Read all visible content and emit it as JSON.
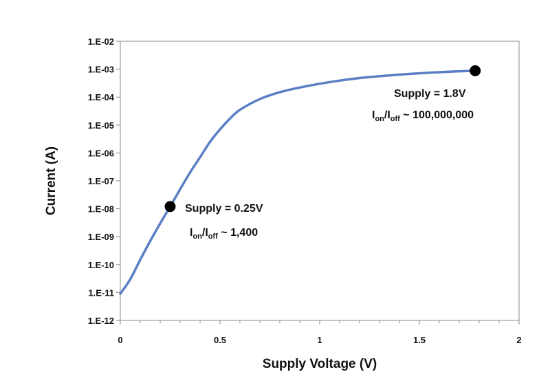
{
  "chart_data": {
    "type": "line",
    "title": "",
    "xlabel": "Supply Voltage (V)",
    "ylabel": "Current (A)",
    "x_scale": "linear",
    "y_scale": "log",
    "xlim": [
      0,
      2
    ],
    "ylim": [
      1e-12,
      0.01
    ],
    "grid": false,
    "legend": "none",
    "line_color": "#5B7FC4",
    "marker_color": "#000000",
    "x_ticks": [
      {
        "value": 0,
        "label": "0"
      },
      {
        "value": 0.5,
        "label": "0.5"
      },
      {
        "value": 1,
        "label": "1"
      },
      {
        "value": 1.5,
        "label": "1.5"
      },
      {
        "value": 2,
        "label": "2"
      }
    ],
    "y_ticks": [
      {
        "value": 1e-12,
        "label": "1.E-12"
      },
      {
        "value": 1e-11,
        "label": "1.E-11"
      },
      {
        "value": 1e-10,
        "label": "1.E-10"
      },
      {
        "value": 1e-09,
        "label": "1.E-09"
      },
      {
        "value": 1e-08,
        "label": "1.E-08"
      },
      {
        "value": 1e-07,
        "label": "1.E-07"
      },
      {
        "value": 1e-06,
        "label": "1.E-06"
      },
      {
        "value": 1e-05,
        "label": "1.E-05"
      },
      {
        "value": 0.0001,
        "label": "1.E-04"
      },
      {
        "value": 0.001,
        "label": "1.E-03"
      },
      {
        "value": 0.01,
        "label": "1.E-02"
      }
    ],
    "series": [
      {
        "x": [
          0,
          0.05,
          0.1,
          0.15,
          0.2,
          0.25,
          0.3,
          0.35,
          0.4,
          0.45,
          0.5,
          0.55,
          0.6,
          0.7,
          0.8,
          0.9,
          1.0,
          1.1,
          1.2,
          1.3,
          1.4,
          1.5,
          1.6,
          1.7,
          1.78
        ],
        "y": [
          9e-12,
          3e-11,
          1.5e-10,
          7e-10,
          3e-09,
          1.2e-08,
          5e-08,
          2e-07,
          7e-07,
          2.5e-06,
          7e-06,
          1.7e-05,
          3.5e-05,
          8.5e-05,
          0.00015,
          0.00022,
          0.0003,
          0.00039,
          0.00048,
          0.00056,
          0.00064,
          0.00071,
          0.00078,
          0.00084,
          0.00088
        ]
      }
    ],
    "points": [
      {
        "x": 0.25,
        "y": 1.2e-08
      },
      {
        "x": 1.78,
        "y": 0.00088
      }
    ],
    "annotations": [
      {
        "line1": "Supply = 0.25V",
        "prefix": "I",
        "sub_on": "on",
        "sep": "/I",
        "sub_off": "off",
        "suffix": " ~ 1,400"
      },
      {
        "line1": "Supply = 1.8V",
        "prefix": "I",
        "sub_on": "on",
        "sep": "/I",
        "sub_off": "off",
        "suffix": " ~ 100,000,000"
      }
    ]
  }
}
